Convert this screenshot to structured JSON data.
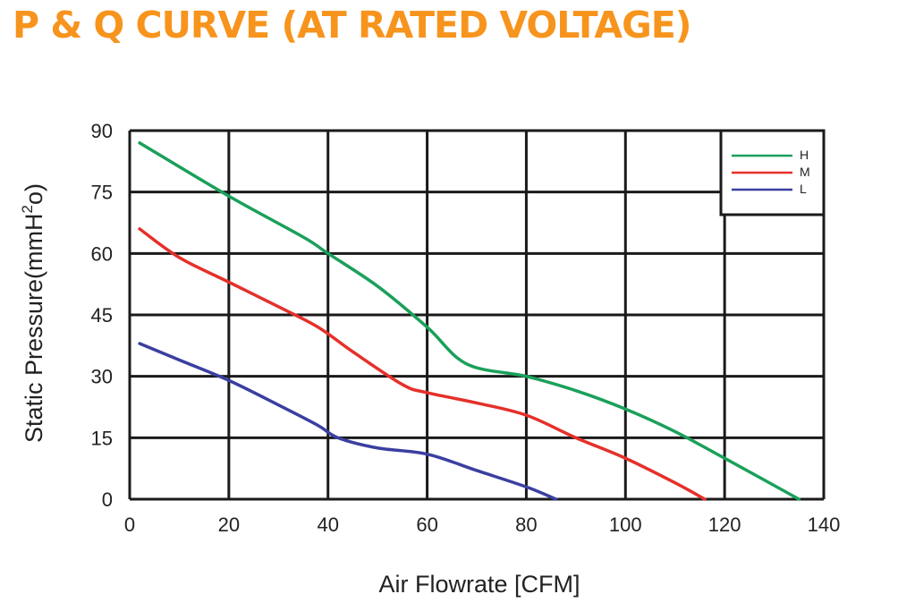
{
  "title": "P & Q CURVE (AT RATED VOLTAGE)",
  "colors": {
    "title": "#f7941d",
    "H": "#1aa05a",
    "M": "#e5302a",
    "L": "#3a3fa0",
    "grid": "#1a1a1a"
  },
  "chart_data": {
    "type": "line",
    "title": "P & Q CURVE (AT RATED VOLTAGE)",
    "xlabel": "Air Flowrate [CFM]",
    "ylabel": "Static Pressure(mmH2o)",
    "xlim": [
      0,
      140
    ],
    "ylim": [
      0,
      90
    ],
    "xticks": [
      0,
      20,
      40,
      60,
      80,
      100,
      120,
      140
    ],
    "yticks": [
      0,
      15,
      30,
      45,
      60,
      75,
      90
    ],
    "grid": true,
    "legend": "top-right",
    "series": [
      {
        "name": "H",
        "color": "#1aa05a",
        "x": [
          2,
          20,
          35,
          40,
          50,
          60,
          68,
          80,
          90,
          100,
          110,
          120,
          135
        ],
        "y": [
          87,
          74,
          64,
          60,
          52,
          42,
          33,
          30,
          26.5,
          22,
          16.5,
          10,
          0
        ]
      },
      {
        "name": "M",
        "color": "#e5302a",
        "x": [
          2,
          10,
          20,
          30,
          38,
          45,
          55,
          60,
          70,
          80,
          90,
          100,
          110,
          116
        ],
        "y": [
          66,
          59,
          53,
          47,
          42,
          36,
          28,
          26,
          23.5,
          20.5,
          15,
          10,
          4,
          0
        ]
      },
      {
        "name": "L",
        "color": "#3a3fa0",
        "x": [
          2,
          10,
          20,
          30,
          38,
          42,
          50,
          60,
          70,
          80,
          86
        ],
        "y": [
          38,
          34,
          29,
          23,
          18,
          15,
          12.5,
          11,
          7,
          3,
          0
        ]
      }
    ]
  }
}
